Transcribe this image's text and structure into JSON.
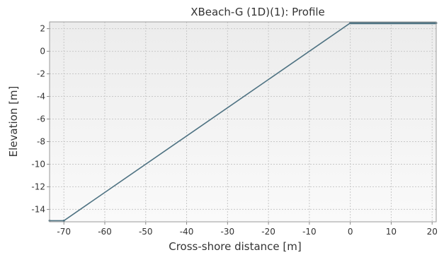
{
  "chart_data": {
    "type": "line",
    "title": "XBeach-G (1D)(1): Profile",
    "xlabel": "Cross-shore distance [m]",
    "ylabel": "Elevation [m]",
    "xlim": [
      -73.5,
      21
    ],
    "ylim": [
      -15.1,
      2.6
    ],
    "xticks": [
      -70,
      -60,
      -50,
      -40,
      -30,
      -20,
      -10,
      0,
      10,
      20
    ],
    "yticks": [
      2,
      0,
      -2,
      -4,
      -6,
      -8,
      -10,
      -12,
      -14
    ],
    "grid": true,
    "legend": "none",
    "series": [
      {
        "x": [
          -73.5,
          -70,
          0,
          21
        ],
        "y": [
          -15,
          -15,
          2.5,
          2.5
        ]
      }
    ],
    "colors": {
      "series": "#4f7383",
      "grid": "#c8c8c8",
      "plot_bg_top": "#ececec",
      "plot_bg_bottom": "#fafafa"
    }
  }
}
